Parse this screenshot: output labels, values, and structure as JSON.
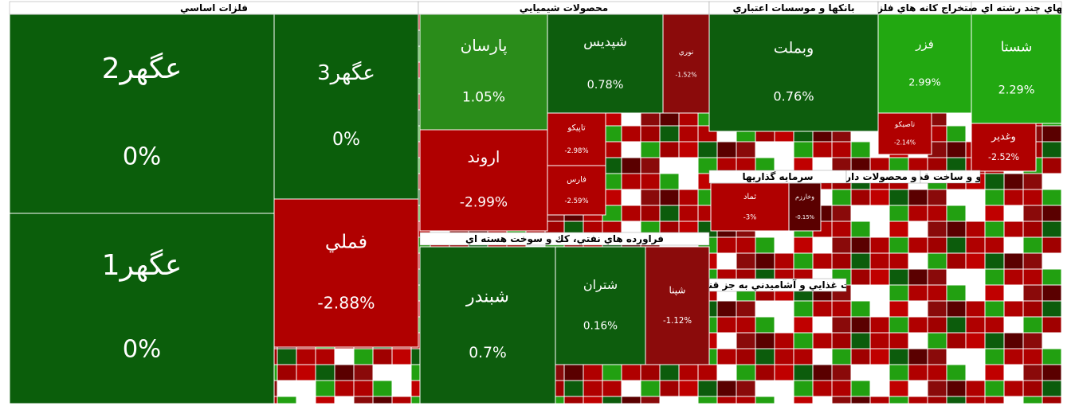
{
  "chart_data": {
    "type": "treemap",
    "groups": [
      {
        "name": "فلزات اساسي",
        "tiles": [
          {
            "name": "عگهر2",
            "value": 0,
            "value_label": "0%",
            "color": "#0b5e0b"
          },
          {
            "name": "عگهر3",
            "value": 0,
            "value_label": "0%",
            "color": "#0b5e0b"
          },
          {
            "name": "عگهر1",
            "value": 0,
            "value_label": "0%",
            "color": "#0b5e0b"
          },
          {
            "name": "فملي",
            "value": -2.88,
            "value_label": "-2.88%",
            "color": "#b00000"
          }
        ]
      },
      {
        "name": "محصولات شيميايي",
        "tiles": [
          {
            "name": "پارسان",
            "value": 1.05,
            "value_label": "1.05%",
            "color": "#2a8c1a"
          },
          {
            "name": "شپديس",
            "value": 0.78,
            "value_label": "0.78%",
            "color": "#0d5d0d"
          },
          {
            "name": "نوري",
            "value": -1.52,
            "value_label": "-1.52%",
            "color": "#8b0b0b"
          },
          {
            "name": "اروند",
            "value": -2.99,
            "value_label": "-2.99%",
            "color": "#b00000"
          },
          {
            "name": "تاپيكو",
            "value": -2.98,
            "value_label": "-2.98%",
            "color": "#b00000"
          },
          {
            "name": "فارس",
            "value": -2.59,
            "value_label": "-2.59%",
            "color": "#b00000"
          }
        ]
      },
      {
        "name": "فراورده هاي نفتي، كك و سوخت هسته اي",
        "tiles": [
          {
            "name": "شبندر",
            "value": 0.7,
            "value_label": "0.7%",
            "color": "#0d5d0d"
          },
          {
            "name": "شتران",
            "value": 0.16,
            "value_label": "0.16%",
            "color": "#0d5d0d"
          },
          {
            "name": "شپنا",
            "value": -1.12,
            "value_label": "-1.12%",
            "color": "#8b0b0b"
          }
        ]
      },
      {
        "name": "بانكها و موسسات اعتباري",
        "tiles": [
          {
            "name": "وبملت",
            "value": 0.76,
            "value_label": "0.76%",
            "color": "#0d5d0d"
          }
        ]
      },
      {
        "name": "استخراج كانه هاي فلزي",
        "tiles": [
          {
            "name": "فزر",
            "value": 2.99,
            "value_label": "2.99%",
            "color": "#22a811"
          },
          {
            "name": "تاصيكو",
            "value": -2.14,
            "value_label": "-2.14%",
            "color": "#b00000"
          }
        ]
      },
      {
        "name": "شركتهاي چند رشته اي صنعتي",
        "tiles": [
          {
            "name": "شستا",
            "value": 2.29,
            "value_label": "2.29%",
            "color": "#22a811"
          },
          {
            "name": "وغدير",
            "value": -2.52,
            "value_label": "-2.52%",
            "color": "#b00000"
          }
        ]
      },
      {
        "name": "سرمايه گذاريها",
        "tiles": [
          {
            "name": "ثماد",
            "value": -3,
            "value_label": "-3%",
            "color": "#b00000"
          },
          {
            "name": "وخارزم",
            "value": -0.15,
            "value_label": "-0.15%",
            "color": "#5a0000"
          }
        ]
      },
      {
        "name": "مواد و محصولات دارويي",
        "tiles": []
      },
      {
        "name": "خودرو و ساخت قطعات",
        "tiles": []
      },
      {
        "name": "محصولات غذايي و آشاميدني به جز قند و شكر",
        "tiles": []
      }
    ]
  }
}
